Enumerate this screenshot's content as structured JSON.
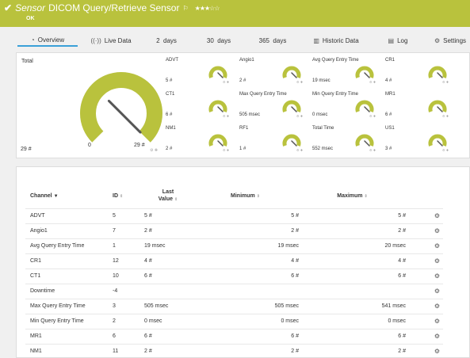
{
  "header": {
    "check_icon": "check-icon",
    "sensor_word": "Sensor",
    "title": "DICOM Query/Retrieve Sensor",
    "flag_icon": "flag-icon",
    "stars": 3,
    "stars_max": 5,
    "status": "OK",
    "bg_color": "#b9c23d"
  },
  "tabs": [
    {
      "label": "Overview",
      "icon": "gauge-icon",
      "active": true
    },
    {
      "label": "Live Data",
      "icon": "live-data-icon"
    },
    {
      "label": "2  days"
    },
    {
      "label": "30  days"
    },
    {
      "label": "365  days"
    },
    {
      "label": "Historic Data",
      "icon": "bar-chart-icon"
    },
    {
      "label": "Log",
      "icon": "log-icon"
    },
    {
      "label": "Settings",
      "icon": "gear-icon"
    }
  ],
  "total": {
    "label": "Total",
    "value": "29 #",
    "gauge_min": "0",
    "gauge_max": "29 #",
    "fill_fraction": 1.0,
    "gauge_color": "#b9c23d"
  },
  "mini_gauges": [
    {
      "name": "ADVT",
      "value": "5 #"
    },
    {
      "name": "Angio1",
      "value": "2 #"
    },
    {
      "name": "Avg Query Entry Time",
      "value": "19 msec"
    },
    {
      "name": "CR1",
      "value": "4 #"
    },
    {
      "name": "CT1",
      "value": "6 #"
    },
    {
      "name": "Max Query Entry Time",
      "value": "505 msec"
    },
    {
      "name": "Min Query Entry Time",
      "value": "0 msec"
    },
    {
      "name": "MR1",
      "value": "6 #"
    },
    {
      "name": "NM1",
      "value": "2 #"
    },
    {
      "name": "RF1",
      "value": "1 #"
    },
    {
      "name": "Total Time",
      "value": "552 msec"
    },
    {
      "name": "US1",
      "value": "3 #"
    }
  ],
  "table": {
    "headers": {
      "channel": "Channel",
      "id": "ID",
      "last_1": "Last",
      "last_2": "Value",
      "minimum": "Minimum",
      "maximum": "Maximum"
    },
    "rows": [
      {
        "channel": "ADVT",
        "id": "5",
        "last": "5 #",
        "min": "5 #",
        "max": "5 #"
      },
      {
        "channel": "Angio1",
        "id": "7",
        "last": "2 #",
        "min": "2 #",
        "max": "2 #"
      },
      {
        "channel": "Avg Query Entry Time",
        "id": "1",
        "last": "19 msec",
        "min": "19 msec",
        "max": "20 msec"
      },
      {
        "channel": "CR1",
        "id": "12",
        "last": "4 #",
        "min": "4 #",
        "max": "4 #"
      },
      {
        "channel": "CT1",
        "id": "10",
        "last": "6 #",
        "min": "6 #",
        "max": "6 #"
      },
      {
        "channel": "Downtime",
        "id": "-4",
        "last": "",
        "min": "",
        "max": ""
      },
      {
        "channel": "Max Query Entry Time",
        "id": "3",
        "last": "505 msec",
        "min": "505 msec",
        "max": "541 msec"
      },
      {
        "channel": "Min Query Entry Time",
        "id": "2",
        "last": "0 msec",
        "min": "0 msec",
        "max": "0 msec"
      },
      {
        "channel": "MR1",
        "id": "6",
        "last": "6 #",
        "min": "6 #",
        "max": "6 #"
      },
      {
        "channel": "NM1",
        "id": "11",
        "last": "2 #",
        "min": "2 #",
        "max": "2 #"
      }
    ]
  }
}
